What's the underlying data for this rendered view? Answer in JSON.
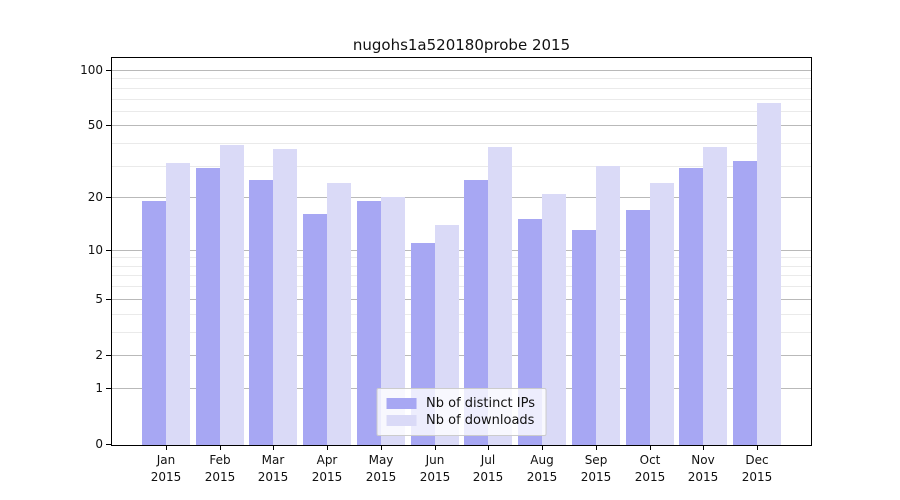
{
  "chart_data": {
    "type": "bar",
    "title": "nugohs1a520180probe 2015",
    "categories": [
      "Jan",
      "Feb",
      "Mar",
      "Apr",
      "May",
      "Jun",
      "Jul",
      "Aug",
      "Sep",
      "Oct",
      "Nov",
      "Dec"
    ],
    "category_year": "2015",
    "series": [
      {
        "name": "Nb of distinct IPs",
        "color": "#a7a7f3",
        "values": [
          19,
          29,
          25,
          16,
          19,
          11,
          25,
          15,
          13,
          17,
          29,
          32
        ]
      },
      {
        "name": "Nb of downloads",
        "color": "#dadaf7",
        "values": [
          31,
          39,
          37,
          24,
          20,
          14,
          38,
          21,
          30,
          24,
          38,
          66
        ]
      }
    ],
    "y_axis": {
      "scale": "log10(1+x)",
      "tick_values": [
        0,
        1,
        2,
        5,
        10,
        20,
        50,
        100
      ],
      "tick_labels": [
        "0",
        "1",
        "2",
        "5",
        "10",
        "20",
        "50",
        "100"
      ],
      "minor_gridline_values": [
        3,
        4,
        6,
        7,
        8,
        9,
        30,
        40,
        60,
        70,
        80,
        90
      ],
      "range_max": 100
    },
    "x_axis": {
      "label_line1": [
        "Jan",
        "Feb",
        "Mar",
        "Apr",
        "May",
        "Jun",
        "Jul",
        "Aug",
        "Sep",
        "Oct",
        "Nov",
        "Dec"
      ],
      "label_line2": [
        "2015",
        "2015",
        "2015",
        "2015",
        "2015",
        "2015",
        "2015",
        "2015",
        "2015",
        "2015",
        "2015",
        "2015"
      ]
    },
    "legend": {
      "entries": [
        "Nb of distinct IPs",
        "Nb of downloads"
      ],
      "position": "bottom-center"
    },
    "grid": {
      "major_color": "#b9b9b9",
      "minor_color": "#eaeaea"
    },
    "colors": {
      "background": "#ffffff",
      "frame": "#000000"
    }
  }
}
